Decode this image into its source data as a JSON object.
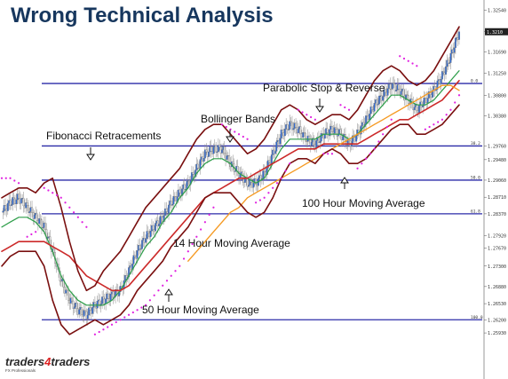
{
  "title": "Wrong Technical Analysis",
  "logo": {
    "part1": "traders",
    "part2": "4",
    "part3": "traders",
    "tagline": "FX Professionals"
  },
  "colors": {
    "fib_line": "#2b2ba8",
    "bollinger": "#7a1010",
    "ma14": "#2e9e4a",
    "ma50": "#cc2a2a",
    "ma100": "#f59a23",
    "sar": "#e020e0",
    "bull": "#2f6bd6",
    "bear": "#e0e0e0",
    "title": "#17375e"
  },
  "annotations": [
    {
      "key": "fibonacci",
      "text": "Fibonacci Retracements"
    },
    {
      "key": "bollinger",
      "text": "Bollinger Bands"
    },
    {
      "key": "sar",
      "text": "Parabolic Stop & Reverse"
    },
    {
      "key": "ma100",
      "text": "100 Hour Moving Average"
    },
    {
      "key": "ma14",
      "text": "14 Hour Moving Average"
    },
    {
      "key": "ma50",
      "text": "50 Hour Moving Average"
    }
  ],
  "chart_data": {
    "type": "candlestick",
    "title": "Wrong Technical Analysis",
    "ylim": [
      1.2515,
      1.3275
    ],
    "y_ticks": [
      "1.32540",
      "1.32100",
      "1.31690",
      "1.31250",
      "1.30800",
      "1.30380",
      "1.29760",
      "1.29480",
      "1.29060",
      "1.28710",
      "1.28370",
      "1.27920",
      "1.27670",
      "1.27300",
      "1.26880",
      "1.26530",
      "1.26200",
      "1.25930"
    ],
    "fibonacci_levels": [
      {
        "label": "0.0",
        "value": 1.3104
      },
      {
        "label": "38.2",
        "value": 1.2976
      },
      {
        "label": "50.0",
        "value": 1.2906
      },
      {
        "label": "61.8",
        "value": 1.2837
      },
      {
        "label": "100.0",
        "value": 1.262
      }
    ],
    "current_price_label": "1.3210",
    "series": [
      {
        "name": "Price",
        "points": [
          1.284,
          1.286,
          1.287,
          1.285,
          1.283,
          1.281,
          1.276,
          1.27,
          1.266,
          1.264,
          1.263,
          1.265,
          1.266,
          1.267,
          1.268,
          1.272,
          1.276,
          1.279,
          1.281,
          1.283,
          1.286,
          1.288,
          1.29,
          1.293,
          1.296,
          1.297,
          1.297,
          1.294,
          1.292,
          1.29,
          1.29,
          1.292,
          1.296,
          1.3,
          1.302,
          1.301,
          1.299,
          1.298,
          1.3,
          1.301,
          1.3,
          1.298,
          1.3,
          1.303,
          1.306,
          1.308,
          1.31,
          1.309,
          1.307,
          1.305,
          1.307,
          1.309,
          1.312,
          1.316,
          1.321
        ]
      },
      {
        "name": "14 Hour Moving Average",
        "points": [
          1.281,
          1.282,
          1.283,
          1.283,
          1.282,
          1.28,
          1.276,
          1.271,
          1.268,
          1.266,
          1.265,
          1.265,
          1.265,
          1.266,
          1.268,
          1.271,
          1.274,
          1.277,
          1.279,
          1.282,
          1.284,
          1.287,
          1.289,
          1.292,
          1.294,
          1.295,
          1.295,
          1.294,
          1.292,
          1.291,
          1.29,
          1.291,
          1.294,
          1.297,
          1.299,
          1.299,
          1.299,
          1.299,
          1.3,
          1.3,
          1.3,
          1.299,
          1.3,
          1.302,
          1.304,
          1.306,
          1.308,
          1.308,
          1.307,
          1.306,
          1.306,
          1.307,
          1.309,
          1.311,
          1.313
        ]
      },
      {
        "name": "50 Hour Moving Average",
        "points": [
          1.276,
          1.277,
          1.278,
          1.278,
          1.278,
          1.278,
          1.277,
          1.276,
          1.275,
          1.273,
          1.271,
          1.27,
          1.269,
          1.268,
          1.268,
          1.269,
          1.271,
          1.273,
          1.275,
          1.277,
          1.279,
          1.281,
          1.283,
          1.285,
          1.287,
          1.288,
          1.289,
          1.29,
          1.291,
          1.291,
          1.292,
          1.293,
          1.294,
          1.295,
          1.296,
          1.297,
          1.297,
          1.297,
          1.298,
          1.298,
          1.298,
          1.298,
          1.298,
          1.299,
          1.3,
          1.301,
          1.302,
          1.303,
          1.303,
          1.304,
          1.305,
          1.306,
          1.307,
          1.309,
          1.311
        ]
      },
      {
        "name": "100 Hour Moving Average",
        "points": [
          null,
          null,
          null,
          null,
          null,
          null,
          null,
          null,
          null,
          null,
          null,
          null,
          null,
          null,
          null,
          null,
          null,
          null,
          null,
          null,
          null,
          null,
          1.274,
          1.276,
          1.278,
          1.28,
          1.282,
          1.284,
          1.285,
          1.287,
          1.288,
          1.289,
          1.29,
          1.291,
          1.292,
          1.293,
          1.294,
          1.295,
          1.296,
          1.297,
          1.298,
          1.299,
          1.3,
          1.301,
          1.302,
          1.303,
          1.304,
          1.305,
          1.306,
          1.307,
          1.308,
          1.309,
          1.31,
          1.31,
          1.309
        ]
      },
      {
        "name": "Bollinger Upper",
        "points": [
          1.287,
          1.288,
          1.289,
          1.289,
          1.288,
          1.29,
          1.291,
          1.285,
          1.278,
          1.272,
          1.268,
          1.269,
          1.272,
          1.274,
          1.276,
          1.279,
          1.282,
          1.285,
          1.287,
          1.289,
          1.291,
          1.293,
          1.296,
          1.299,
          1.301,
          1.302,
          1.302,
          1.3,
          1.298,
          1.296,
          1.297,
          1.299,
          1.302,
          1.305,
          1.306,
          1.305,
          1.303,
          1.302,
          1.303,
          1.304,
          1.304,
          1.303,
          1.305,
          1.308,
          1.311,
          1.313,
          1.314,
          1.313,
          1.311,
          1.31,
          1.311,
          1.313,
          1.316,
          1.319,
          1.322
        ]
      },
      {
        "name": "Bollinger Lower",
        "points": [
          1.273,
          1.275,
          1.276,
          1.276,
          1.276,
          1.273,
          1.266,
          1.261,
          1.259,
          1.26,
          1.261,
          1.262,
          1.261,
          1.262,
          1.263,
          1.265,
          1.268,
          1.27,
          1.272,
          1.274,
          1.277,
          1.279,
          1.281,
          1.284,
          1.287,
          1.288,
          1.288,
          1.288,
          1.286,
          1.284,
          1.283,
          1.284,
          1.287,
          1.291,
          1.294,
          1.295,
          1.295,
          1.294,
          1.296,
          1.297,
          1.296,
          1.294,
          1.294,
          1.295,
          1.297,
          1.299,
          1.301,
          1.302,
          1.302,
          1.3,
          1.3,
          1.301,
          1.302,
          1.304,
          1.306
        ]
      },
      {
        "name": "Parabolic SAR",
        "points": [
          1.291,
          1.291,
          1.29,
          1.279,
          1.28,
          1.289,
          1.288,
          1.287,
          1.285,
          1.283,
          1.281,
          1.259,
          1.26,
          1.261,
          1.262,
          1.263,
          1.264,
          1.265,
          1.267,
          1.269,
          1.271,
          1.273,
          1.276,
          1.279,
          1.282,
          1.285,
          1.302,
          1.301,
          1.3,
          1.299,
          1.286,
          1.287,
          1.289,
          1.291,
          1.294,
          1.305,
          1.304,
          1.303,
          1.296,
          1.296,
          1.306,
          1.305,
          1.293,
          1.295,
          1.297,
          1.3,
          1.303,
          1.316,
          1.315,
          1.314,
          1.301,
          1.302,
          1.303,
          1.305,
          1.308
        ]
      }
    ]
  }
}
